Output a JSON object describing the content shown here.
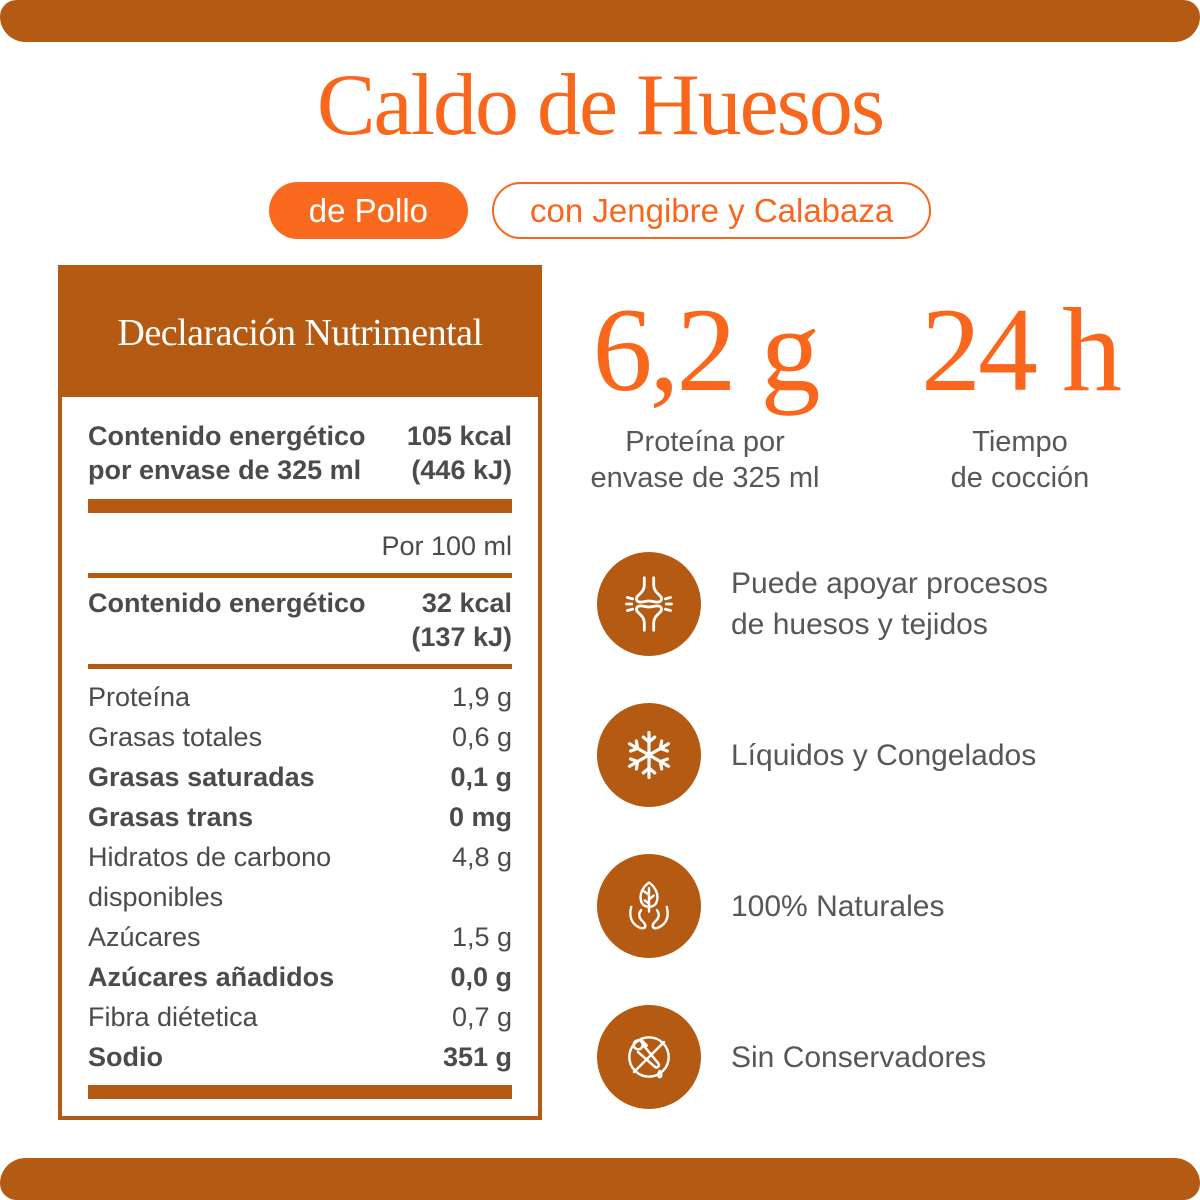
{
  "palette": {
    "brown": "#B55A13",
    "orange": "#F8671C",
    "pill_orange": "#FA6A1E",
    "text_gray": "#4b4b4d"
  },
  "header": {
    "title": "Caldo de Huesos",
    "pill_filled": "de Pollo",
    "pill_outline": "con Jengibre y Calabaza"
  },
  "nutrition": {
    "title": "Declaración Nutrimental",
    "rows": [
      {
        "type": "item",
        "label": "Contenido energético\npor envase de 325 ml",
        "value": "105 kcal\n(446 kJ)",
        "bold": true
      },
      {
        "type": "bar"
      },
      {
        "type": "item",
        "label": "",
        "value": "Por 100 ml",
        "bold": false
      },
      {
        "type": "rule"
      },
      {
        "type": "item",
        "label": "Contenido energético",
        "value": "32 kcal\n(137 kJ)",
        "bold": true
      },
      {
        "type": "rule"
      },
      {
        "type": "item",
        "label": "Proteína",
        "value": "1,9 g",
        "bold": false
      },
      {
        "type": "item",
        "label": "Grasas totales",
        "value": "0,6 g",
        "bold": false
      },
      {
        "type": "item",
        "label": "Grasas saturadas",
        "value": "0,1 g",
        "bold": true
      },
      {
        "type": "item",
        "label": "Grasas trans",
        "value": "0 mg",
        "bold": true
      },
      {
        "type": "item",
        "label": "Hidratos de carbono\ndisponibles",
        "value": "4,8 g",
        "bold": false
      },
      {
        "type": "item",
        "label": "Azúcares",
        "value": "1,5 g",
        "bold": false
      },
      {
        "type": "item",
        "label": "Azúcares añadidos",
        "value": "0,0 g",
        "bold": true
      },
      {
        "type": "item",
        "label": "Fibra diétetica",
        "value": "0,7 g",
        "bold": false
      },
      {
        "type": "item",
        "label": "Sodio",
        "value": "351 g",
        "bold": true
      },
      {
        "type": "bar"
      }
    ]
  },
  "stats": [
    {
      "value": "6,2 g",
      "label": "Proteína por\nenvase de 325 ml"
    },
    {
      "value": "24 h",
      "label": "Tiempo\nde cocción"
    }
  ],
  "features": [
    {
      "icon": "bone-joint-icon",
      "text": "Puede apoyar procesos\nde huesos y tejidos"
    },
    {
      "icon": "snowflake-icon",
      "text": "Líquidos y Congelados"
    },
    {
      "icon": "hands-leaf-icon",
      "text": "100% Naturales"
    },
    {
      "icon": "no-preservatives-icon",
      "text": "Sin Conservadores"
    }
  ]
}
